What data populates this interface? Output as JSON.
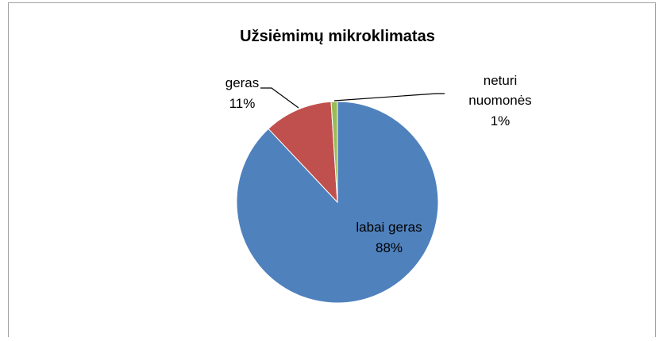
{
  "chart_data": {
    "type": "pie",
    "title": "Užsiėmimų mikroklimatas",
    "categories": [
      "labai geras",
      "geras",
      "neturi nuomonės"
    ],
    "values": [
      88,
      11,
      1
    ],
    "value_labels": [
      "88%",
      "11%",
      "1%"
    ],
    "colors": [
      "#4f81bd",
      "#c0504d",
      "#9bbb59"
    ]
  }
}
